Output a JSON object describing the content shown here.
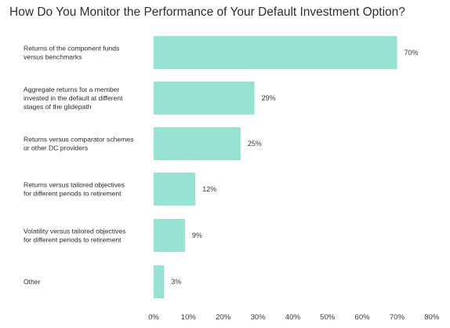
{
  "chart_data": {
    "type": "bar",
    "orientation": "horizontal",
    "title": "How Do You Monitor the Performance of Your Default Investment Option?",
    "categories": [
      [
        "Returns of the component funds",
        "versus benchmarks"
      ],
      [
        "Aggregate returns for a member",
        "invested in the default at different",
        "stages of the glidepath"
      ],
      [
        "Returns versus comparator schemes",
        "or other DC providers"
      ],
      [
        "Returns versus tailored objectives",
        "for different periods to retirement"
      ],
      [
        "Volatility versus tailored objectives",
        "for different periods to retirement"
      ],
      [
        "Other"
      ]
    ],
    "values": [
      70,
      29,
      25,
      12,
      9,
      3
    ],
    "value_labels": [
      "70%",
      "29%",
      "25%",
      "12%",
      "9%",
      "3%"
    ],
    "xlim": [
      0,
      80
    ],
    "x_ticks": [
      "0%",
      "10%",
      "20%",
      "30%",
      "40%",
      "50%",
      "60%",
      "70%",
      "80%"
    ],
    "bar_color": "#96e3d4",
    "grid": false,
    "legend": false
  }
}
